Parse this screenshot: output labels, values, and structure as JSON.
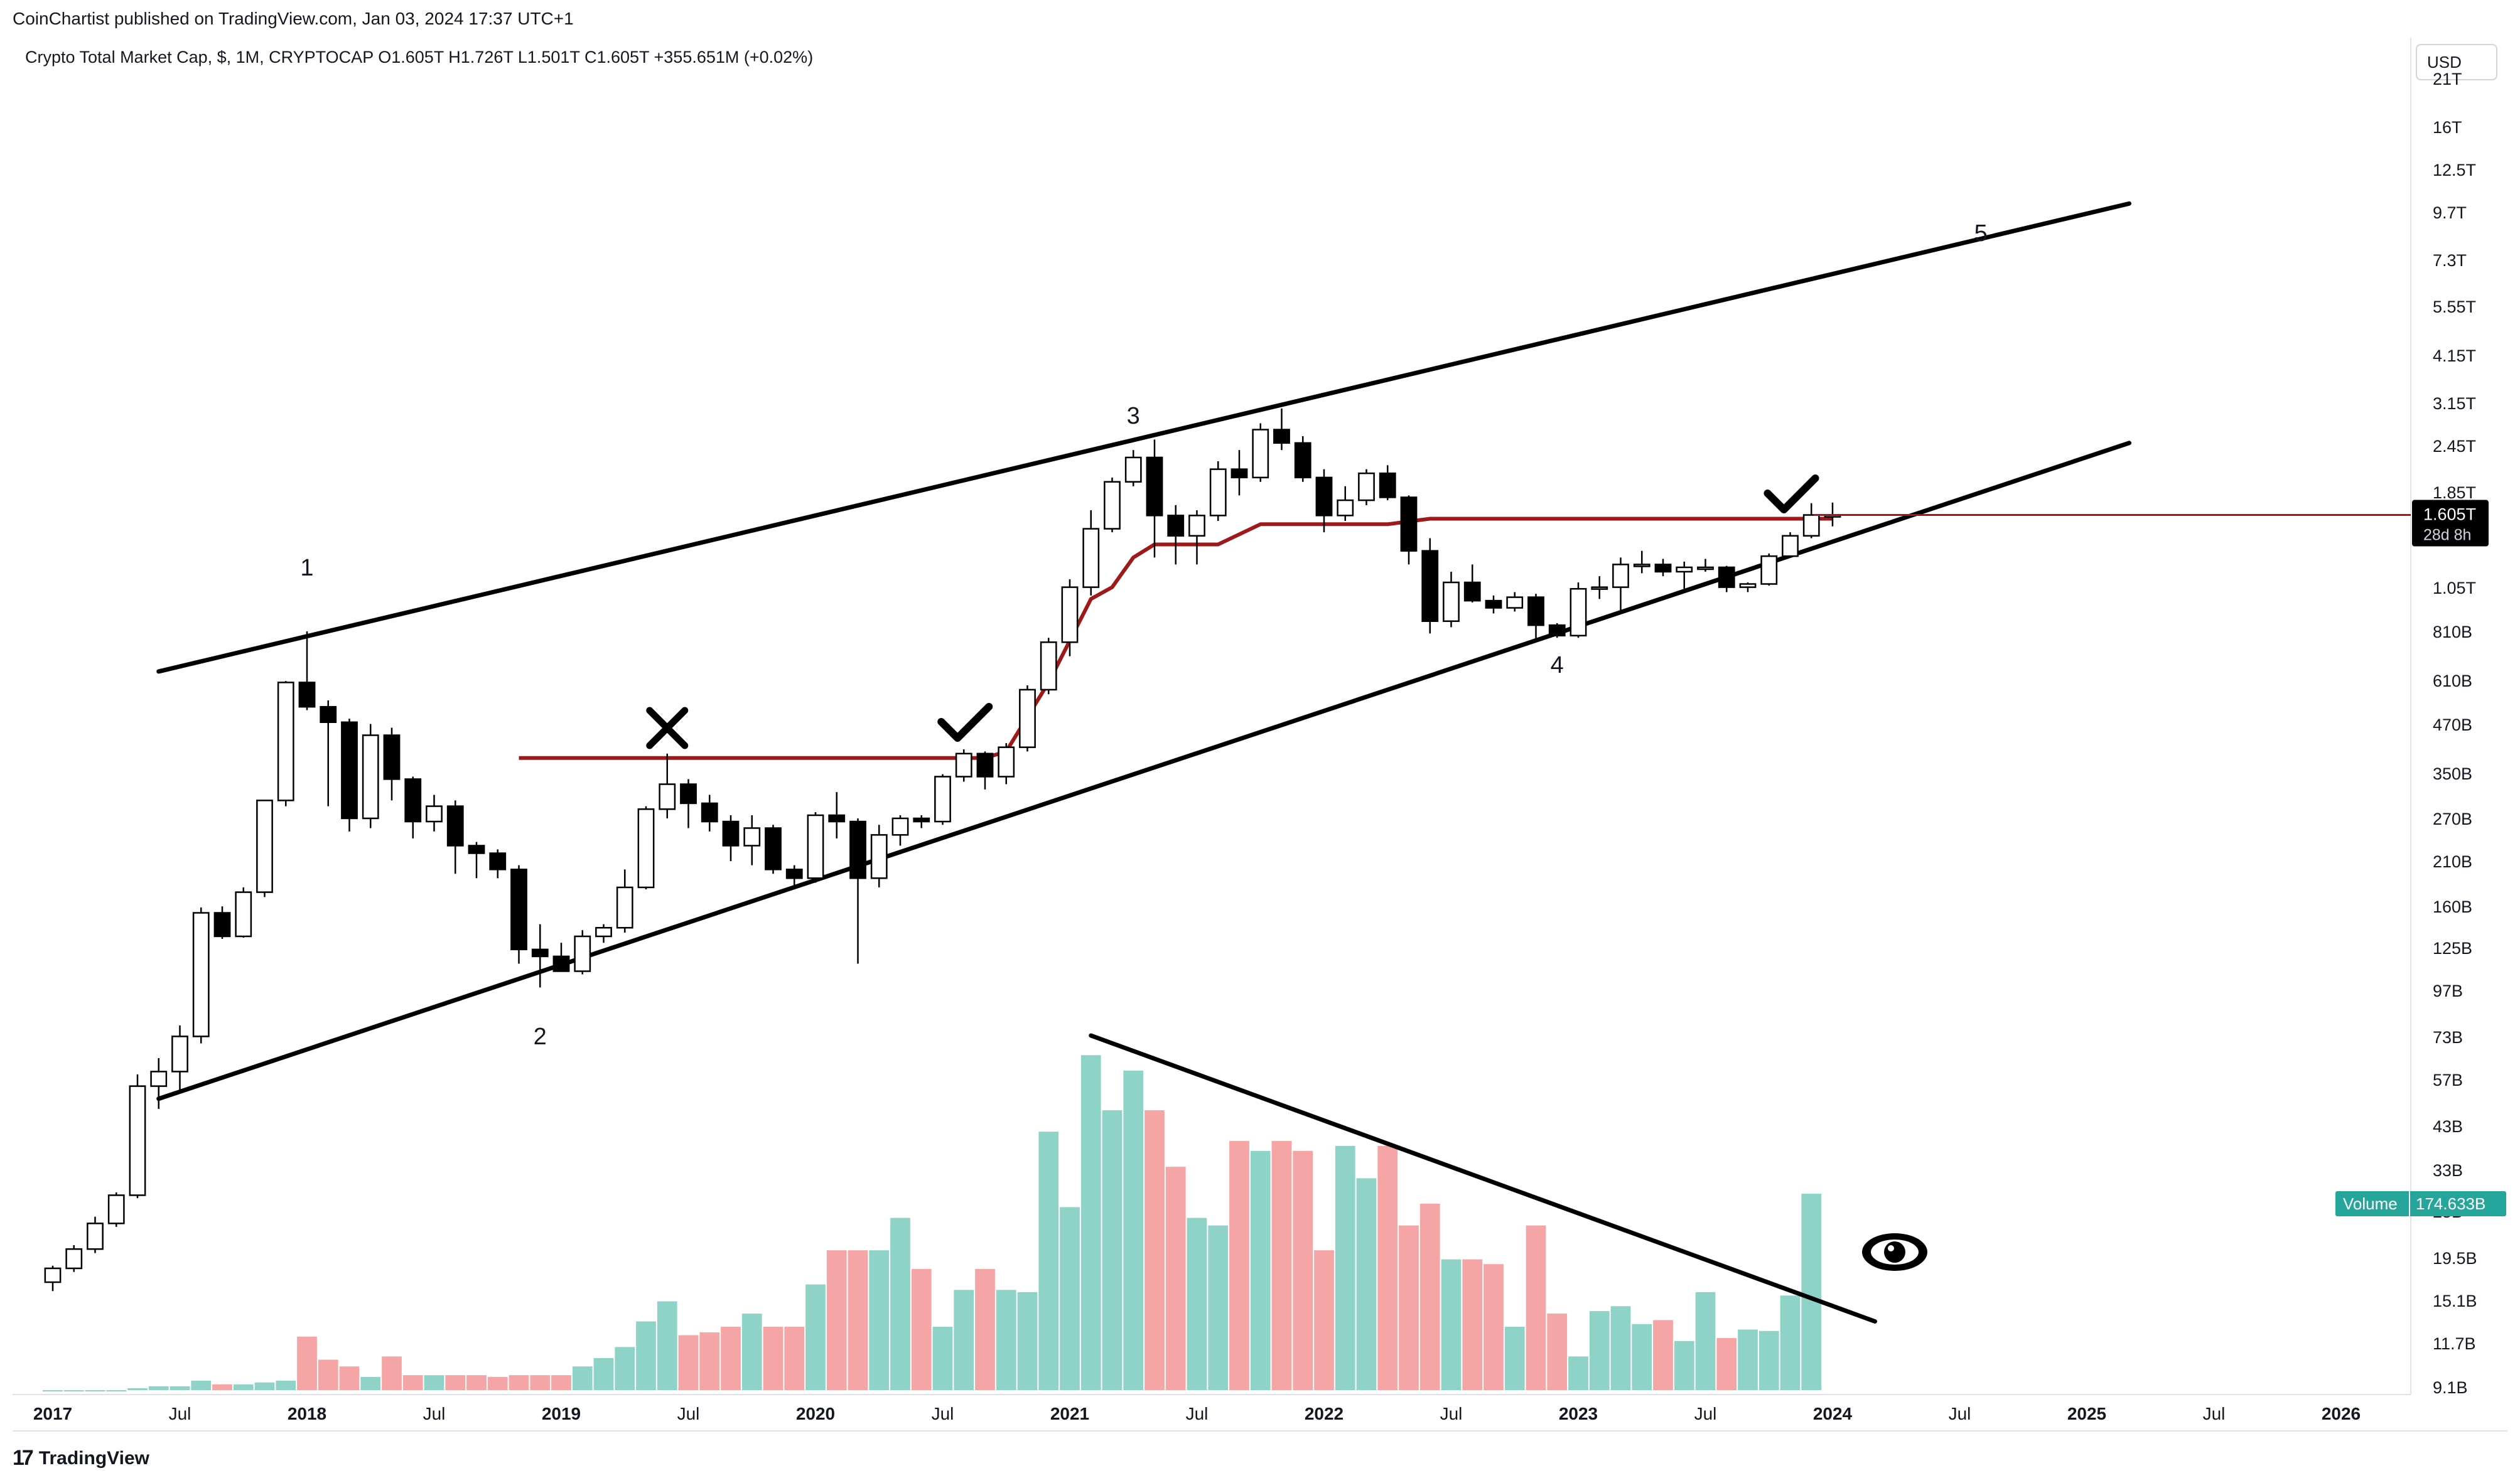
{
  "header": {
    "published_by": "CoinChartist published on TradingView.com, Jan 03, 2024 17:37 UTC+1",
    "legend": "Crypto Total Market Cap, $, 1M, CRYPTOCAP  O1.605T  H1.726T  L1.501T  C1.605T  +355.651M (+0.02%)",
    "currency_button": "USD"
  },
  "footer": {
    "logo_mark": "17",
    "brand": "TradingView"
  },
  "price_axis": {
    "labels": [
      "21T",
      "16T",
      "12.5T",
      "9.7T",
      "7.3T",
      "5.55T",
      "4.15T",
      "3.15T",
      "2.45T",
      "1.85T",
      "1.35T",
      "1.05T",
      "810B",
      "610B",
      "470B",
      "350B",
      "270B",
      "210B",
      "160B",
      "125B",
      "97B",
      "73B",
      "57B",
      "43B",
      "33B",
      "25B",
      "19.5B",
      "15.1B",
      "11.7B",
      "9.1B"
    ],
    "last_price": "1.605T",
    "countdown": "28d 8h",
    "volume_tag_label": "Volume",
    "volume_tag_value": "174.633B"
  },
  "time_axis": {
    "labels": [
      "2017",
      "Jul",
      "2018",
      "Jul",
      "2019",
      "Jul",
      "2020",
      "Jul",
      "2021",
      "Jul",
      "2022",
      "Jul",
      "2023",
      "Jul",
      "2024",
      "Jul",
      "2025",
      "Jul",
      "2026"
    ],
    "bold": [
      "2017",
      "2018",
      "2019",
      "2020",
      "2021",
      "2022",
      "2023",
      "2024",
      "2025",
      "2026"
    ]
  },
  "annotations": {
    "wave_labels": [
      "1",
      "2",
      "3",
      "4",
      "5"
    ],
    "marks": [
      "x-mark",
      "check-mark",
      "check-mark",
      "eye-icon"
    ]
  },
  "colors": {
    "bull_volume": "#8fd3c8",
    "bear_volume": "#f5a5a5",
    "trend_stop": "#9e1a1a",
    "trendline": "#000000",
    "candle_bear": "#000000",
    "candle_bull": "#ffffff",
    "volume_tag": "#26a69a"
  },
  "chart_data": {
    "type": "candlestick",
    "title": "Crypto Total Market Cap, $, 1M, CRYPTOCAP",
    "scale": "log",
    "y_unit": "USD (B)",
    "series_volume_unit": "USD (B)",
    "candles": [
      {
        "d": "2017-01",
        "o": 17.7,
        "h": 19.5,
        "l": 16.8,
        "c": 19.2
      },
      {
        "d": "2017-02",
        "o": 19.2,
        "h": 22.0,
        "l": 18.8,
        "c": 21.5
      },
      {
        "d": "2017-03",
        "o": 21.5,
        "h": 26.0,
        "l": 21.0,
        "c": 25.0
      },
      {
        "d": "2017-04",
        "o": 25.0,
        "h": 30.0,
        "l": 24.5,
        "c": 29.5
      },
      {
        "d": "2017-05",
        "o": 29.5,
        "h": 60.0,
        "l": 29.0,
        "c": 56.0
      },
      {
        "d": "2017-06",
        "o": 56.0,
        "h": 66.0,
        "l": 49.0,
        "c": 61.0
      },
      {
        "d": "2017-07",
        "o": 61.0,
        "h": 80.0,
        "l": 54.0,
        "c": 75.0
      },
      {
        "d": "2017-08",
        "o": 75.0,
        "h": 160.0,
        "l": 72.0,
        "c": 155.0
      },
      {
        "d": "2017-09",
        "o": 155.0,
        "h": 161.0,
        "l": 133.0,
        "c": 135.0
      },
      {
        "d": "2017-10",
        "o": 135.0,
        "h": 180.0,
        "l": 134.0,
        "c": 175.0
      },
      {
        "d": "2017-11",
        "o": 175.0,
        "h": 300.0,
        "l": 170.0,
        "c": 300.0
      },
      {
        "d": "2017-12",
        "o": 300.0,
        "h": 605.0,
        "l": 290.0,
        "c": 600.0
      },
      {
        "d": "2018-01",
        "o": 600.0,
        "h": 810.0,
        "l": 510.0,
        "c": 520.0
      },
      {
        "d": "2018-02",
        "o": 520.0,
        "h": 540.0,
        "l": 290.0,
        "c": 475.0
      },
      {
        "d": "2018-03",
        "o": 475.0,
        "h": 485.0,
        "l": 250.0,
        "c": 270.0
      },
      {
        "d": "2018-04",
        "o": 270.0,
        "h": 470.0,
        "l": 255.0,
        "c": 440.0
      },
      {
        "d": "2018-05",
        "o": 440.0,
        "h": 460.0,
        "l": 300.0,
        "c": 340.0
      },
      {
        "d": "2018-06",
        "o": 340.0,
        "h": 345.0,
        "l": 240.0,
        "c": 265.0
      },
      {
        "d": "2018-07",
        "o": 265.0,
        "h": 310.0,
        "l": 250.0,
        "c": 290.0
      },
      {
        "d": "2018-08",
        "o": 290.0,
        "h": 300.0,
        "l": 195.0,
        "c": 230.0
      },
      {
        "d": "2018-09",
        "o": 230.0,
        "h": 235.0,
        "l": 190.0,
        "c": 220.0
      },
      {
        "d": "2018-10",
        "o": 220.0,
        "h": 225.0,
        "l": 190.0,
        "c": 200.0
      },
      {
        "d": "2018-11",
        "o": 200.0,
        "h": 205.0,
        "l": 115.0,
        "c": 125.0
      },
      {
        "d": "2018-12",
        "o": 125.0,
        "h": 145.0,
        "l": 100.0,
        "c": 120.0
      },
      {
        "d": "2019-01",
        "o": 120.0,
        "h": 130.0,
        "l": 110.0,
        "c": 110.0
      },
      {
        "d": "2019-02",
        "o": 110.0,
        "h": 140.0,
        "l": 108.0,
        "c": 135.0
      },
      {
        "d": "2019-03",
        "o": 135.0,
        "h": 145.0,
        "l": 130.0,
        "c": 142.0
      },
      {
        "d": "2019-04",
        "o": 142.0,
        "h": 200.0,
        "l": 138.0,
        "c": 180.0
      },
      {
        "d": "2019-05",
        "o": 180.0,
        "h": 290.0,
        "l": 178.0,
        "c": 285.0
      },
      {
        "d": "2019-06",
        "o": 285.0,
        "h": 395.0,
        "l": 270.0,
        "c": 330.0
      },
      {
        "d": "2019-07",
        "o": 330.0,
        "h": 340.0,
        "l": 255.0,
        "c": 295.0
      },
      {
        "d": "2019-08",
        "o": 295.0,
        "h": 310.0,
        "l": 250.0,
        "c": 265.0
      },
      {
        "d": "2019-09",
        "o": 265.0,
        "h": 275.0,
        "l": 210.0,
        "c": 230.0
      },
      {
        "d": "2019-10",
        "o": 230.0,
        "h": 275.0,
        "l": 205.0,
        "c": 255.0
      },
      {
        "d": "2019-11",
        "o": 255.0,
        "h": 260.0,
        "l": 195.0,
        "c": 200.0
      },
      {
        "d": "2019-12",
        "o": 200.0,
        "h": 205.0,
        "l": 180.0,
        "c": 190.0
      },
      {
        "d": "2020-01",
        "o": 190.0,
        "h": 280.0,
        "l": 185.0,
        "c": 275.0
      },
      {
        "d": "2020-02",
        "o": 275.0,
        "h": 315.0,
        "l": 240.0,
        "c": 265.0
      },
      {
        "d": "2020-03",
        "o": 265.0,
        "h": 270.0,
        "l": 115.0,
        "c": 190.0
      },
      {
        "d": "2020-04",
        "o": 190.0,
        "h": 260.0,
        "l": 180.0,
        "c": 245.0
      },
      {
        "d": "2020-05",
        "o": 245.0,
        "h": 275.0,
        "l": 230.0,
        "c": 270.0
      },
      {
        "d": "2020-06",
        "o": 270.0,
        "h": 275.0,
        "l": 255.0,
        "c": 265.0
      },
      {
        "d": "2020-07",
        "o": 265.0,
        "h": 350.0,
        "l": 260.0,
        "c": 345.0
      },
      {
        "d": "2020-08",
        "o": 345.0,
        "h": 405.0,
        "l": 335.0,
        "c": 395.0
      },
      {
        "d": "2020-09",
        "o": 395.0,
        "h": 400.0,
        "l": 320.0,
        "c": 345.0
      },
      {
        "d": "2020-10",
        "o": 345.0,
        "h": 420.0,
        "l": 330.0,
        "c": 410.0
      },
      {
        "d": "2020-11",
        "o": 410.0,
        "h": 590.0,
        "l": 400.0,
        "c": 575.0
      },
      {
        "d": "2020-12",
        "o": 575.0,
        "h": 780.0,
        "l": 560.0,
        "c": 760.0
      },
      {
        "d": "2021-01",
        "o": 760.0,
        "h": 1100.0,
        "l": 700.0,
        "c": 1050.0
      },
      {
        "d": "2021-02",
        "o": 1050.0,
        "h": 1650.0,
        "l": 1000.0,
        "c": 1480.0
      },
      {
        "d": "2021-03",
        "o": 1480.0,
        "h": 2000.0,
        "l": 1450.0,
        "c": 1950.0
      },
      {
        "d": "2021-04",
        "o": 1950.0,
        "h": 2350.0,
        "l": 1900.0,
        "c": 2250.0
      },
      {
        "d": "2021-05",
        "o": 2250.0,
        "h": 2500.0,
        "l": 1250.0,
        "c": 1600.0
      },
      {
        "d": "2021-06",
        "o": 1600.0,
        "h": 1700.0,
        "l": 1200.0,
        "c": 1420.0
      },
      {
        "d": "2021-07",
        "o": 1420.0,
        "h": 1650.0,
        "l": 1200.0,
        "c": 1600.0
      },
      {
        "d": "2021-08",
        "o": 1600.0,
        "h": 2200.0,
        "l": 1550.0,
        "c": 2100.0
      },
      {
        "d": "2021-09",
        "o": 2100.0,
        "h": 2350.0,
        "l": 1800.0,
        "c": 2000.0
      },
      {
        "d": "2021-10",
        "o": 2000.0,
        "h": 2750.0,
        "l": 1950.0,
        "c": 2650.0
      },
      {
        "d": "2021-11",
        "o": 2650.0,
        "h": 3000.0,
        "l": 2350.0,
        "c": 2450.0
      },
      {
        "d": "2021-12",
        "o": 2450.0,
        "h": 2550.0,
        "l": 1950.0,
        "c": 2000.0
      },
      {
        "d": "2022-01",
        "o": 2000.0,
        "h": 2100.0,
        "l": 1450.0,
        "c": 1600.0
      },
      {
        "d": "2022-02",
        "o": 1600.0,
        "h": 1900.0,
        "l": 1550.0,
        "c": 1750.0
      },
      {
        "d": "2022-03",
        "o": 1750.0,
        "h": 2100.0,
        "l": 1700.0,
        "c": 2050.0
      },
      {
        "d": "2022-04",
        "o": 2050.0,
        "h": 2150.0,
        "l": 1750.0,
        "c": 1780.0
      },
      {
        "d": "2022-05",
        "o": 1780.0,
        "h": 1800.0,
        "l": 1200.0,
        "c": 1300.0
      },
      {
        "d": "2022-06",
        "o": 1300.0,
        "h": 1400.0,
        "l": 800.0,
        "c": 860.0
      },
      {
        "d": "2022-07",
        "o": 860.0,
        "h": 1150.0,
        "l": 830.0,
        "c": 1080.0
      },
      {
        "d": "2022-08",
        "o": 1080.0,
        "h": 1200.0,
        "l": 960.0,
        "c": 970.0
      },
      {
        "d": "2022-09",
        "o": 970.0,
        "h": 1000.0,
        "l": 900.0,
        "c": 930.0
      },
      {
        "d": "2022-10",
        "o": 930.0,
        "h": 1020.0,
        "l": 910.0,
        "c": 990.0
      },
      {
        "d": "2022-11",
        "o": 990.0,
        "h": 1010.0,
        "l": 760.0,
        "c": 840.0
      },
      {
        "d": "2022-12",
        "o": 840.0,
        "h": 850.0,
        "l": 780.0,
        "c": 790.0
      },
      {
        "d": "2023-01",
        "o": 790.0,
        "h": 1080.0,
        "l": 780.0,
        "c": 1040.0
      },
      {
        "d": "2023-02",
        "o": 1040.0,
        "h": 1120.0,
        "l": 980.0,
        "c": 1050.0
      },
      {
        "d": "2023-03",
        "o": 1050.0,
        "h": 1250.0,
        "l": 900.0,
        "c": 1200.0
      },
      {
        "d": "2023-04",
        "o": 1200.0,
        "h": 1300.0,
        "l": 1140.0,
        "c": 1200.0
      },
      {
        "d": "2023-05",
        "o": 1200.0,
        "h": 1240.0,
        "l": 1120.0,
        "c": 1150.0
      },
      {
        "d": "2023-06",
        "o": 1150.0,
        "h": 1220.0,
        "l": 1040.0,
        "c": 1180.0
      },
      {
        "d": "2023-07",
        "o": 1180.0,
        "h": 1240.0,
        "l": 1150.0,
        "c": 1180.0
      },
      {
        "d": "2023-08",
        "o": 1180.0,
        "h": 1190.0,
        "l": 1020.0,
        "c": 1050.0
      },
      {
        "d": "2023-09",
        "o": 1050.0,
        "h": 1080.0,
        "l": 1020.0,
        "c": 1070.0
      },
      {
        "d": "2023-10",
        "o": 1070.0,
        "h": 1280.0,
        "l": 1060.0,
        "c": 1260.0
      },
      {
        "d": "2023-11",
        "o": 1260.0,
        "h": 1450.0,
        "l": 1250.0,
        "c": 1420.0
      },
      {
        "d": "2023-12",
        "o": 1420.0,
        "h": 1720.0,
        "l": 1400.0,
        "c": 1605.0
      },
      {
        "d": "2024-01",
        "o": 1605.0,
        "h": 1726.0,
        "l": 1501.0,
        "c": 1605.0
      }
    ],
    "volume": [
      {
        "d": "2017-01",
        "v": 9.1
      },
      {
        "d": "2017-02",
        "v": 9.1
      },
      {
        "d": "2017-03",
        "v": 9.1
      },
      {
        "d": "2017-04",
        "v": 9.1
      },
      {
        "d": "2017-05",
        "v": 9.2
      },
      {
        "d": "2017-06",
        "v": 9.3
      },
      {
        "d": "2017-07",
        "v": 9.3
      },
      {
        "d": "2017-08",
        "v": 9.6
      },
      {
        "d": "2017-09",
        "v": 9.4
      },
      {
        "d": "2017-10",
        "v": 9.4
      },
      {
        "d": "2017-11",
        "v": 9.5
      },
      {
        "d": "2017-12",
        "v": 9.6
      },
      {
        "d": "2018-01",
        "v": 12.3
      },
      {
        "d": "2018-02",
        "v": 10.8
      },
      {
        "d": "2018-03",
        "v": 10.4
      },
      {
        "d": "2018-04",
        "v": 9.8
      },
      {
        "d": "2018-05",
        "v": 11.0
      },
      {
        "d": "2018-06",
        "v": 9.9
      },
      {
        "d": "2018-07",
        "v": 9.9
      },
      {
        "d": "2018-08",
        "v": 9.9
      },
      {
        "d": "2018-09",
        "v": 9.9
      },
      {
        "d": "2018-10",
        "v": 9.8
      },
      {
        "d": "2018-11",
        "v": 9.9
      },
      {
        "d": "2018-12",
        "v": 9.9
      },
      {
        "d": "2019-01",
        "v": 9.9
      },
      {
        "d": "2019-02",
        "v": 10.4
      },
      {
        "d": "2019-03",
        "v": 10.9
      },
      {
        "d": "2019-04",
        "v": 11.6
      },
      {
        "d": "2019-05",
        "v": 13.4
      },
      {
        "d": "2019-06",
        "v": 15.0
      },
      {
        "d": "2019-07",
        "v": 12.4
      },
      {
        "d": "2019-08",
        "v": 12.6
      },
      {
        "d": "2019-09",
        "v": 13.0
      },
      {
        "d": "2019-10",
        "v": 14.0
      },
      {
        "d": "2019-11",
        "v": 13.0
      },
      {
        "d": "2019-12",
        "v": 13.0
      },
      {
        "d": "2020-01",
        "v": 16.5
      },
      {
        "d": "2020-02",
        "v": 20.0
      },
      {
        "d": "2020-03",
        "v": 20.0
      },
      {
        "d": "2020-04",
        "v": 20.0
      },
      {
        "d": "2020-05",
        "v": 24.0
      },
      {
        "d": "2020-06",
        "v": 18.0
      },
      {
        "d": "2020-07",
        "v": 13.0
      },
      {
        "d": "2020-08",
        "v": 16.0
      },
      {
        "d": "2020-09",
        "v": 18.0
      },
      {
        "d": "2020-10",
        "v": 16.0
      },
      {
        "d": "2020-11",
        "v": 15.8
      },
      {
        "d": "2020-12",
        "v": 39.0
      },
      {
        "d": "2021-01",
        "v": 25.5
      },
      {
        "d": "2021-02",
        "v": 60.0
      },
      {
        "d": "2021-03",
        "v": 44.0
      },
      {
        "d": "2021-04",
        "v": 55.0
      },
      {
        "d": "2021-05",
        "v": 44.0
      },
      {
        "d": "2021-06",
        "v": 32.0
      },
      {
        "d": "2021-07",
        "v": 24.0
      },
      {
        "d": "2021-08",
        "v": 23.0
      },
      {
        "d": "2021-09",
        "v": 37.0
      },
      {
        "d": "2021-10",
        "v": 35.0
      },
      {
        "d": "2021-11",
        "v": 37.0
      },
      {
        "d": "2021-12",
        "v": 35.0
      },
      {
        "d": "2022-01",
        "v": 20.0
      },
      {
        "d": "2022-02",
        "v": 36.0
      },
      {
        "d": "2022-03",
        "v": 30.0
      },
      {
        "d": "2022-04",
        "v": 36.0
      },
      {
        "d": "2022-05",
        "v": 23.0
      },
      {
        "d": "2022-06",
        "v": 26.0
      },
      {
        "d": "2022-07",
        "v": 19.0
      },
      {
        "d": "2022-08",
        "v": 19.0
      },
      {
        "d": "2022-09",
        "v": 18.5
      },
      {
        "d": "2022-10",
        "v": 13.0
      },
      {
        "d": "2022-11",
        "v": 23.0
      },
      {
        "d": "2022-12",
        "v": 14.0
      },
      {
        "d": "2023-01",
        "v": 11.0
      },
      {
        "d": "2023-02",
        "v": 14.2
      },
      {
        "d": "2023-03",
        "v": 14.6
      },
      {
        "d": "2023-04",
        "v": 13.2
      },
      {
        "d": "2023-05",
        "v": 13.5
      },
      {
        "d": "2023-06",
        "v": 12.0
      },
      {
        "d": "2023-07",
        "v": 15.8
      },
      {
        "d": "2023-08",
        "v": 12.2
      },
      {
        "d": "2023-09",
        "v": 12.8
      },
      {
        "d": "2023-10",
        "v": 12.7
      },
      {
        "d": "2023-11",
        "v": 15.5
      },
      {
        "d": "2023-12",
        "v": 27.5
      }
    ],
    "trend_stop_line": [
      {
        "d": "2018-11",
        "y": 385
      },
      {
        "d": "2020-09",
        "y": 385
      },
      {
        "d": "2020-10",
        "y": 400
      },
      {
        "d": "2020-12",
        "y": 600
      },
      {
        "d": "2021-02",
        "y": 980
      },
      {
        "d": "2021-03",
        "y": 1050
      },
      {
        "d": "2021-04",
        "y": 1250
      },
      {
        "d": "2021-05",
        "y": 1350
      },
      {
        "d": "2021-08",
        "y": 1350
      },
      {
        "d": "2021-10",
        "y": 1520
      },
      {
        "d": "2022-04",
        "y": 1520
      },
      {
        "d": "2022-06",
        "y": 1570
      },
      {
        "d": "2024-01",
        "y": 1570
      }
    ],
    "trendlines": [
      {
        "name": "upper-channel",
        "from": {
          "d": "2017-06",
          "y": 640
        },
        "to": {
          "d": "2025-03",
          "y": 10000
        }
      },
      {
        "name": "lower-channel",
        "from": {
          "d": "2017-06",
          "y": 52
        },
        "to": {
          "d": "2025-03",
          "y": 2450
        }
      },
      {
        "name": "volume-resistance",
        "from": {
          "d": "2021-02",
          "y": 67
        },
        "to": {
          "d": "2024-03",
          "y": 13.4
        }
      }
    ],
    "ylim": [
      9.1,
      21000
    ],
    "xlim": [
      "2016-12",
      "2026-12"
    ]
  }
}
